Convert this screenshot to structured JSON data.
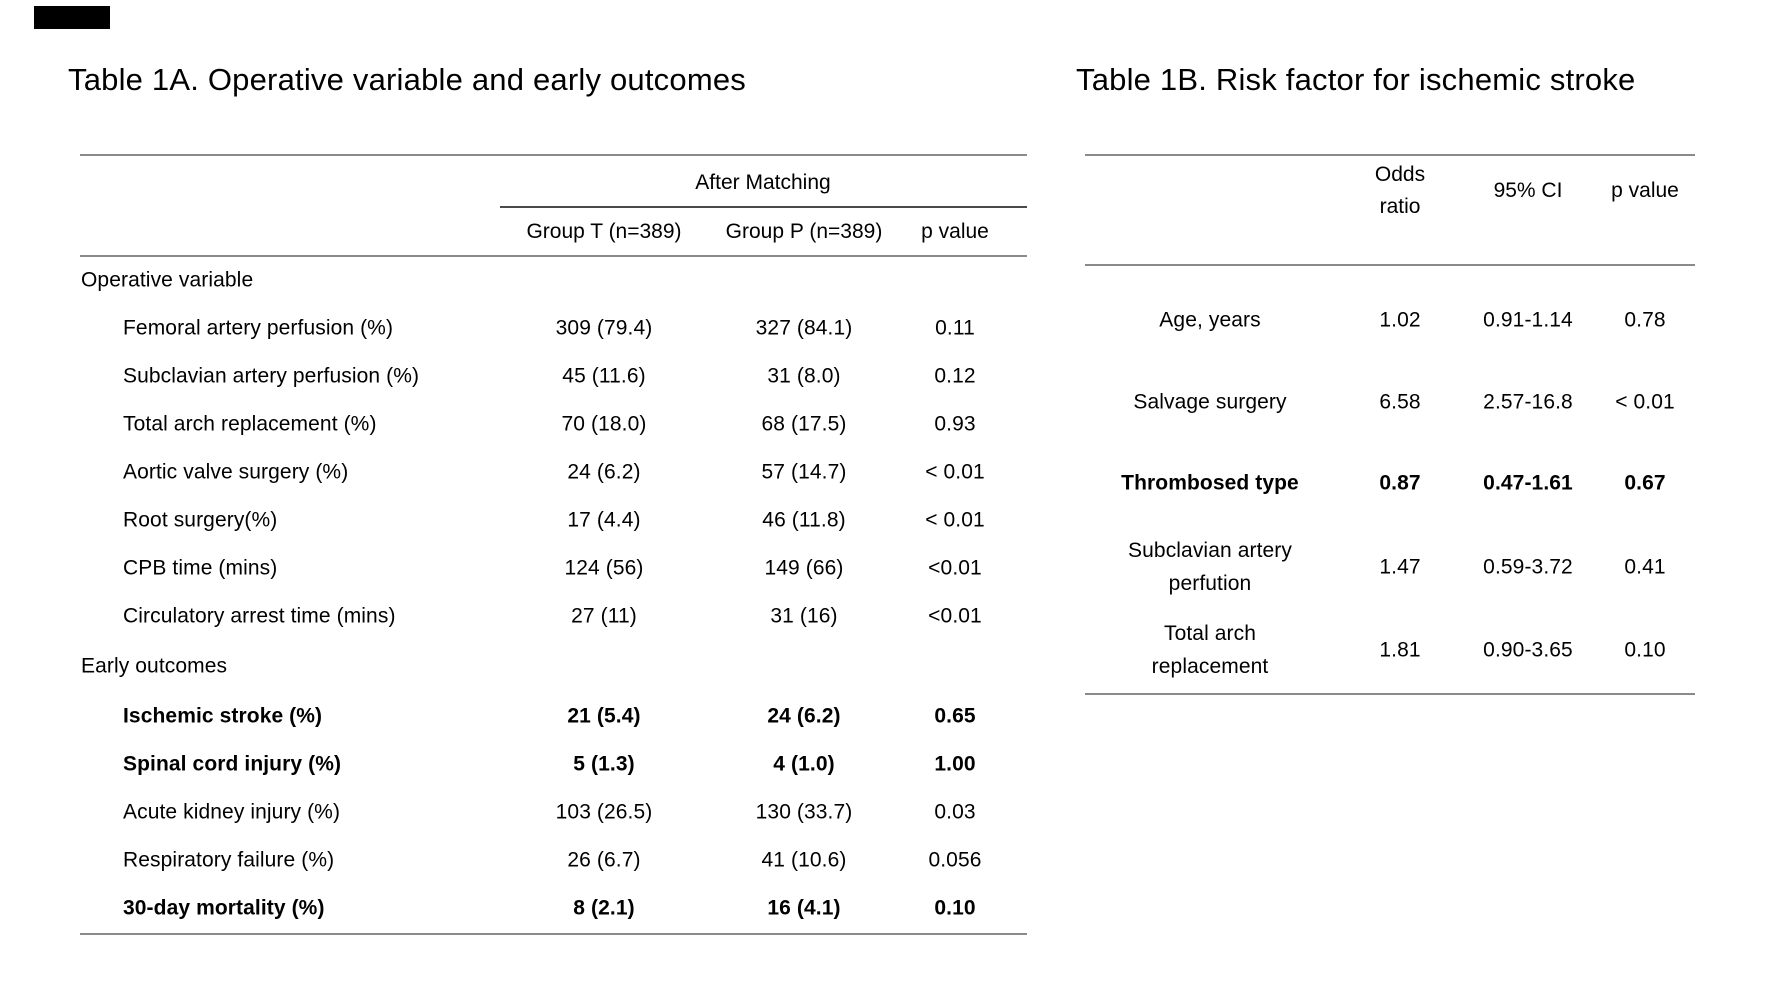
{
  "table_1a": {
    "title": "Table 1A. Operative variable and early outcomes",
    "column_group_header": "After Matching",
    "columns": [
      "Group T (n=389)",
      "Group P (n=389)",
      "p value"
    ],
    "rows": [
      {
        "label": "Operative variable",
        "section": true
      },
      {
        "label": "Femoral artery perfusion (%)",
        "values": [
          "309 (79.4)",
          "327 (84.1)",
          "0.11"
        ]
      },
      {
        "label": "Subclavian artery perfusion (%)",
        "values": [
          "45 (11.6)",
          "31 (8.0)",
          "0.12"
        ]
      },
      {
        "label": "Total arch replacement (%)",
        "values": [
          "70 (18.0)",
          "68 (17.5)",
          "0.93"
        ]
      },
      {
        "label": "Aortic valve surgery (%)",
        "values": [
          "24 (6.2)",
          "57 (14.7)",
          "< 0.01"
        ]
      },
      {
        "label": "Root surgery(%)",
        "values": [
          "17 (4.4)",
          "46 (11.8)",
          "< 0.01"
        ]
      },
      {
        "label": "CPB time (mins)",
        "values": [
          "124 (56)",
          "149 (66)",
          "<0.01"
        ]
      },
      {
        "label": "Circulatory arrest time (mins)",
        "values": [
          "27 (11)",
          "31 (16)",
          "<0.01"
        ]
      },
      {
        "label": "Early outcomes",
        "section": true
      },
      {
        "label": "Ischemic stroke (%)",
        "values": [
          "21 (5.4)",
          "24 (6.2)",
          "0.65"
        ],
        "bold": true
      },
      {
        "label": "Spinal cord injury (%)",
        "values": [
          "5 (1.3)",
          "4 (1.0)",
          "1.00"
        ],
        "bold": true
      },
      {
        "label": "Acute kidney injury (%)",
        "values": [
          "103 (26.5)",
          "130 (33.7)",
          "0.03"
        ]
      },
      {
        "label": "Respiratory failure (%)",
        "values": [
          "26 (6.7)",
          "41 (10.6)",
          "0.056"
        ]
      },
      {
        "label": "30-day mortality (%)",
        "values": [
          "8 (2.1)",
          "16 (4.1)",
          "0.10"
        ],
        "bold": true
      }
    ]
  },
  "table_1b": {
    "title": "Table 1B. Risk factor for ischemic stroke",
    "columns": [
      "Odds\nratio",
      "95% CI",
      "p value"
    ],
    "rows": [
      {
        "label": "Age, years",
        "values": [
          "1.02",
          "0.91-1.14",
          "0.78"
        ]
      },
      {
        "label": "Salvage surgery",
        "values": [
          "6.58",
          "2.57-16.8",
          "< 0.01"
        ]
      },
      {
        "label": "Thrombosed type",
        "values": [
          "0.87",
          "0.47-1.61",
          "0.67"
        ],
        "bold": true
      },
      {
        "label": "Subclavian artery\nperfution",
        "values": [
          "1.47",
          "0.59-3.72",
          "0.41"
        ]
      },
      {
        "label": "Total arch\nreplacement",
        "values": [
          "1.81",
          "0.90-3.65",
          "0.10"
        ]
      }
    ]
  }
}
